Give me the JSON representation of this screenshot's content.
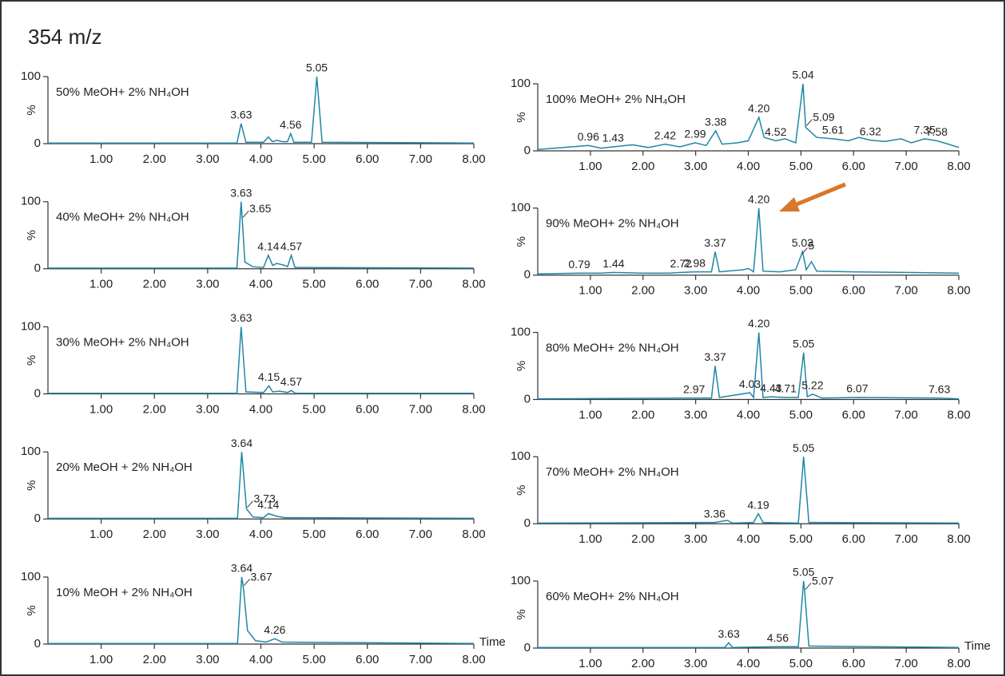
{
  "title": "354 m/z",
  "chart_data": [
    {
      "type": "line",
      "label": "50% MeOH+ 2% NH₄OH",
      "xlim": [
        0,
        8
      ],
      "ylim": [
        0,
        100
      ],
      "ylabel": "%",
      "yticks": [
        0,
        100
      ],
      "xticks": [
        {
          "value": 1,
          "label": "1.00"
        },
        {
          "value": 2,
          "label": "2.00"
        },
        {
          "value": 3,
          "label": "3.00"
        },
        {
          "value": 4,
          "label": "4.00"
        },
        {
          "value": 5,
          "label": "5.00"
        },
        {
          "value": 6,
          "label": "6.00"
        },
        {
          "value": 7,
          "label": "7.00"
        },
        {
          "value": 8,
          "label": "8.00"
        }
      ],
      "color": "#1f87a6",
      "x": [
        0,
        3.55,
        3.63,
        3.72,
        4.05,
        4.14,
        4.22,
        4.3,
        4.4,
        4.5,
        4.56,
        4.62,
        4.95,
        5.05,
        5.15,
        8
      ],
      "values": [
        1,
        1,
        30,
        2,
        2,
        10,
        3,
        5,
        3,
        3,
        15,
        2,
        2,
        100,
        2,
        1
      ],
      "annotations": [
        {
          "x": 3.63,
          "label": "3.63"
        },
        {
          "x": 4.56,
          "label": "4.56"
        },
        {
          "x": 5.05,
          "label": "5.05"
        }
      ]
    },
    {
      "type": "line",
      "label": "40% MeOH+ 2% NH₄OH",
      "xlim": [
        0,
        8
      ],
      "ylim": [
        0,
        100
      ],
      "ylabel": "%",
      "yticks": [
        0,
        100
      ],
      "xticks": [
        {
          "value": 1,
          "label": "1.00"
        },
        {
          "value": 2,
          "label": "2.00"
        },
        {
          "value": 3,
          "label": "3.00"
        },
        {
          "value": 4,
          "label": "4.00"
        },
        {
          "value": 5,
          "label": "5.00"
        },
        {
          "value": 6,
          "label": "6.00"
        },
        {
          "value": 7,
          "label": "7.00"
        },
        {
          "value": 8,
          "label": "8.00"
        }
      ],
      "color": "#1f87a6",
      "x": [
        0,
        3.55,
        3.63,
        3.7,
        3.85,
        4.05,
        4.14,
        4.22,
        4.3,
        4.45,
        4.5,
        4.57,
        4.64,
        8
      ],
      "values": [
        1,
        1,
        100,
        10,
        3,
        2,
        20,
        5,
        8,
        5,
        3,
        20,
        2,
        1
      ],
      "annotations": [
        {
          "x": 3.63,
          "label": "3.63"
        },
        {
          "x": 3.65,
          "label": "3.65"
        },
        {
          "x": 4.14,
          "label": "4.14"
        },
        {
          "x": 4.57,
          "label": "4.57"
        }
      ]
    },
    {
      "type": "line",
      "label": "30% MeOH+ 2% NH₄OH",
      "xlim": [
        0,
        8
      ],
      "ylim": [
        0,
        100
      ],
      "ylabel": "%",
      "yticks": [
        0,
        100
      ],
      "xticks": [
        {
          "value": 1,
          "label": "1.00"
        },
        {
          "value": 2,
          "label": "2.00"
        },
        {
          "value": 3,
          "label": "3.00"
        },
        {
          "value": 4,
          "label": "4.00"
        },
        {
          "value": 5,
          "label": "5.00"
        },
        {
          "value": 6,
          "label": "6.00"
        },
        {
          "value": 7,
          "label": "7.00"
        },
        {
          "value": 8,
          "label": "8.00"
        }
      ],
      "color": "#1f87a6",
      "x": [
        0,
        3.55,
        3.63,
        3.72,
        4.05,
        4.15,
        4.22,
        4.35,
        4.5,
        4.57,
        4.65,
        8
      ],
      "values": [
        1,
        1,
        100,
        3,
        2,
        12,
        3,
        4,
        2,
        5,
        1,
        1
      ],
      "annotations": [
        {
          "x": 3.63,
          "label": "3.63"
        },
        {
          "x": 4.15,
          "label": "4.15"
        },
        {
          "x": 4.57,
          "label": "4.57"
        }
      ]
    },
    {
      "type": "line",
      "label": "20% MeOH + 2% NH₄OH",
      "xlim": [
        0,
        8
      ],
      "ylim": [
        0,
        100
      ],
      "ylabel": "%",
      "yticks": [
        0,
        100
      ],
      "xticks": [
        {
          "value": 1,
          "label": "1.00"
        },
        {
          "value": 2,
          "label": "2.00"
        },
        {
          "value": 3,
          "label": "3.00"
        },
        {
          "value": 4,
          "label": "4.00"
        },
        {
          "value": 5,
          "label": "5.00"
        },
        {
          "value": 6,
          "label": "6.00"
        },
        {
          "value": 7,
          "label": "7.00"
        },
        {
          "value": 8,
          "label": "8.00"
        }
      ],
      "color": "#1f87a6",
      "x": [
        0,
        3.56,
        3.64,
        3.73,
        3.85,
        4.05,
        4.14,
        4.3,
        4.45,
        8
      ],
      "values": [
        1,
        1,
        100,
        15,
        3,
        2,
        8,
        4,
        2,
        1
      ],
      "annotations": [
        {
          "x": 3.64,
          "label": "3.64"
        },
        {
          "x": 3.73,
          "label": "3.73"
        },
        {
          "x": 4.14,
          "label": "4.14"
        }
      ]
    },
    {
      "type": "line",
      "label": "10% MeOH + 2% NH₄OH",
      "xlim": [
        0,
        8
      ],
      "ylim": [
        0,
        100
      ],
      "ylabel": "%",
      "yticks": [
        0,
        100
      ],
      "xlabel": "Time",
      "xticks": [
        {
          "value": 1,
          "label": "1.00"
        },
        {
          "value": 2,
          "label": "2.00"
        },
        {
          "value": 3,
          "label": "3.00"
        },
        {
          "value": 4,
          "label": "4.00"
        },
        {
          "value": 5,
          "label": "5.00"
        },
        {
          "value": 6,
          "label": "6.00"
        },
        {
          "value": 7,
          "label": "7.00"
        },
        {
          "value": 8,
          "label": "8.00"
        }
      ],
      "color": "#1f87a6",
      "x": [
        0,
        3.56,
        3.64,
        3.67,
        3.75,
        3.9,
        4.1,
        4.26,
        4.4,
        8
      ],
      "values": [
        1,
        1,
        100,
        85,
        20,
        5,
        3,
        8,
        3,
        1
      ],
      "annotations": [
        {
          "x": 3.64,
          "label": "3.64"
        },
        {
          "x": 3.67,
          "label": "3.67"
        },
        {
          "x": 4.26,
          "label": "4.26"
        }
      ]
    },
    {
      "type": "line",
      "label": "100% MeOH+ 2% NH₄OH",
      "xlim": [
        0,
        8
      ],
      "ylim": [
        0,
        100
      ],
      "ylabel": "%",
      "yticks": [
        0,
        100
      ],
      "xticks": [
        {
          "value": 1,
          "label": "1.00"
        },
        {
          "value": 2,
          "label": "2.00"
        },
        {
          "value": 3,
          "label": "3.00"
        },
        {
          "value": 4,
          "label": "4.00"
        },
        {
          "value": 5,
          "label": "5.00"
        },
        {
          "value": 6,
          "label": "6.00"
        },
        {
          "value": 7,
          "label": "7.00"
        },
        {
          "value": 8,
          "label": "8.00"
        }
      ],
      "color": "#1f87a6",
      "x": [
        0,
        0.5,
        0.96,
        1.2,
        1.43,
        1.8,
        2.1,
        2.42,
        2.7,
        2.99,
        3.2,
        3.38,
        3.5,
        3.8,
        4.0,
        4.2,
        4.3,
        4.52,
        4.7,
        4.9,
        5.04,
        5.09,
        5.3,
        5.61,
        5.9,
        6.1,
        6.32,
        6.6,
        6.9,
        7.1,
        7.35,
        7.58,
        7.8,
        8
      ],
      "values": [
        2,
        5,
        8,
        4,
        6,
        9,
        5,
        10,
        6,
        12,
        8,
        30,
        10,
        12,
        15,
        50,
        20,
        15,
        18,
        12,
        100,
        35,
        20,
        18,
        15,
        20,
        16,
        14,
        18,
        12,
        18,
        15,
        10,
        5
      ],
      "annotations": [
        {
          "x": 0.96,
          "label": "0.96"
        },
        {
          "x": 1.43,
          "label": "1.43"
        },
        {
          "x": 2.42,
          "label": "2.42"
        },
        {
          "x": 2.99,
          "label": "2.99"
        },
        {
          "x": 3.38,
          "label": "3.38"
        },
        {
          "x": 4.2,
          "label": "4.20"
        },
        {
          "x": 4.52,
          "label": "4.52"
        },
        {
          "x": 5.04,
          "label": "5.04"
        },
        {
          "x": 5.09,
          "label": "5.09"
        },
        {
          "x": 5.61,
          "label": "5.61"
        },
        {
          "x": 6.32,
          "label": "6.32"
        },
        {
          "x": 7.35,
          "label": "7.35"
        },
        {
          "x": 7.58,
          "label": "7.58"
        }
      ]
    },
    {
      "type": "line",
      "label": "90% MeOH+ 2% NH₄OH",
      "xlim": [
        0,
        8
      ],
      "ylim": [
        0,
        100
      ],
      "ylabel": "%",
      "yticks": [
        0,
        100
      ],
      "xticks": [
        {
          "value": 1,
          "label": "1.00"
        },
        {
          "value": 2,
          "label": "2.00"
        },
        {
          "value": 3,
          "label": "3.00"
        },
        {
          "value": 4,
          "label": "4.00"
        },
        {
          "value": 5,
          "label": "5.00"
        },
        {
          "value": 6,
          "label": "6.00"
        },
        {
          "value": 7,
          "label": "7.00"
        },
        {
          "value": 8,
          "label": "8.00"
        }
      ],
      "color": "#1f87a6",
      "x": [
        0,
        0.79,
        1.2,
        1.44,
        2,
        2.5,
        2.72,
        2.98,
        3.3,
        3.37,
        3.45,
        3.9,
        4.0,
        4.1,
        4.2,
        4.28,
        4.6,
        4.9,
        5.03,
        5.1,
        5.2,
        5.3,
        6,
        7,
        8
      ],
      "values": [
        2,
        3,
        3,
        4,
        3,
        3,
        4,
        5,
        5,
        35,
        5,
        8,
        10,
        5,
        100,
        6,
        5,
        8,
        35,
        8,
        20,
        6,
        5,
        4,
        3
      ],
      "annotations": [
        {
          "x": 0.79,
          "label": "0.79"
        },
        {
          "x": 1.44,
          "label": "1.44"
        },
        {
          "x": 2.72,
          "label": "2.72"
        },
        {
          "x": 2.98,
          "label": "2.98"
        },
        {
          "x": 3.37,
          "label": "3.37"
        },
        {
          "x": 4.2,
          "label": "4.20"
        },
        {
          "x": 5.03,
          "label": "5.03"
        },
        {
          "x": 5,
          "label": "5"
        }
      ]
    },
    {
      "type": "line",
      "label": "80% MeOH+ 2% NH₄OH",
      "xlim": [
        0,
        8
      ],
      "ylim": [
        0,
        100
      ],
      "ylabel": "%",
      "yticks": [
        0,
        100
      ],
      "xticks": [
        {
          "value": 1,
          "label": "1.00"
        },
        {
          "value": 2,
          "label": "2.00"
        },
        {
          "value": 3,
          "label": "3.00"
        },
        {
          "value": 4,
          "label": "4.00"
        },
        {
          "value": 5,
          "label": "5.00"
        },
        {
          "value": 6,
          "label": "6.00"
        },
        {
          "value": 7,
          "label": "7.00"
        },
        {
          "value": 8,
          "label": "8.00"
        }
      ],
      "color": "#1f87a6",
      "x": [
        0,
        2.97,
        3.3,
        3.37,
        3.45,
        4.03,
        4.1,
        4.2,
        4.28,
        4.43,
        4.71,
        4.95,
        5.05,
        5.12,
        5.22,
        5.4,
        6.07,
        7.63,
        8
      ],
      "values": [
        1,
        2,
        2,
        50,
        3,
        10,
        3,
        100,
        3,
        4,
        3,
        3,
        70,
        4,
        8,
        2,
        3,
        2,
        1
      ],
      "annotations": [
        {
          "x": 2.97,
          "label": "2.97"
        },
        {
          "x": 3.37,
          "label": "3.37"
        },
        {
          "x": 4.03,
          "label": "4.03"
        },
        {
          "x": 4.2,
          "label": "4.20"
        },
        {
          "x": 4.43,
          "label": "4.43"
        },
        {
          "x": 4.71,
          "label": "4.71"
        },
        {
          "x": 5.05,
          "label": "5.05"
        },
        {
          "x": 5.22,
          "label": "5.22"
        },
        {
          "x": 6.07,
          "label": "6.07"
        },
        {
          "x": 7.63,
          "label": "7.63"
        }
      ]
    },
    {
      "type": "line",
      "label": "70% MeOH+ 2% NH₄OH",
      "xlim": [
        0,
        8
      ],
      "ylim": [
        0,
        100
      ],
      "ylabel": "%",
      "yticks": [
        0,
        100
      ],
      "xticks": [
        {
          "value": 1,
          "label": "1.00"
        },
        {
          "value": 2,
          "label": "2.00"
        },
        {
          "value": 3,
          "label": "3.00"
        },
        {
          "value": 4,
          "label": "4.00"
        },
        {
          "value": 5,
          "label": "5.00"
        },
        {
          "value": 6,
          "label": "6.00"
        },
        {
          "value": 7,
          "label": "7.00"
        },
        {
          "value": 8,
          "label": "8.00"
        }
      ],
      "color": "#1f87a6",
      "x": [
        0,
        3.36,
        3.6,
        3.7,
        4.1,
        4.19,
        4.28,
        4.95,
        5.05,
        5.15,
        8
      ],
      "values": [
        1,
        2,
        5,
        1,
        2,
        15,
        2,
        1,
        100,
        2,
        1
      ],
      "annotations": [
        {
          "x": 3.36,
          "label": "3.36"
        },
        {
          "x": 4.19,
          "label": "4.19"
        },
        {
          "x": 5.05,
          "label": "5.05"
        }
      ]
    },
    {
      "type": "line",
      "label": "60% MeOH+ 2% NH₄OH",
      "xlim": [
        0,
        8
      ],
      "ylim": [
        0,
        100
      ],
      "ylabel": "%",
      "yticks": [
        0,
        100
      ],
      "xlabel": "Time",
      "xticks": [
        {
          "value": 1,
          "label": "1.00"
        },
        {
          "value": 2,
          "label": "2.00"
        },
        {
          "value": 3,
          "label": "3.00"
        },
        {
          "value": 4,
          "label": "4.00"
        },
        {
          "value": 5,
          "label": "5.00"
        },
        {
          "value": 6,
          "label": "6.00"
        },
        {
          "value": 7,
          "label": "7.00"
        },
        {
          "value": 8,
          "label": "8.00"
        }
      ],
      "color": "#1f87a6",
      "x": [
        0,
        3.55,
        3.63,
        3.7,
        4.56,
        4.95,
        5.05,
        5.07,
        5.15,
        8
      ],
      "values": [
        1,
        1,
        8,
        1,
        2,
        2,
        100,
        85,
        3,
        1
      ],
      "annotations": [
        {
          "x": 3.63,
          "label": "3.63"
        },
        {
          "x": 4.56,
          "label": "4.56"
        },
        {
          "x": 5.05,
          "label": "5.05"
        },
        {
          "x": 5.07,
          "label": "5.07"
        }
      ]
    }
  ]
}
